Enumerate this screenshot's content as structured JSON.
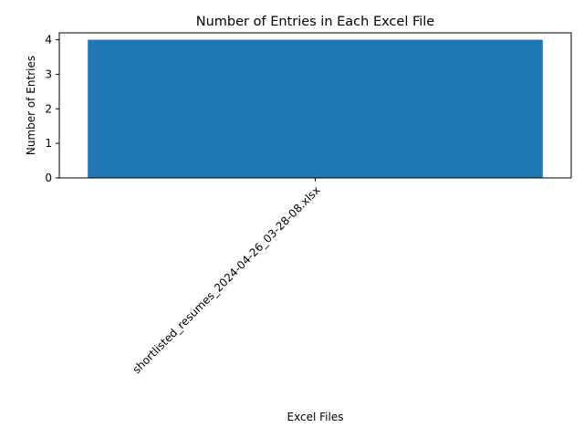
{
  "chart_data": {
    "type": "bar",
    "title": "Number of Entries in Each Excel File",
    "xlabel": "Excel Files",
    "ylabel": "Number of Entries",
    "categories": [
      "shortlisted_resumes_2024-04-26_03-28-08.xlsx"
    ],
    "values": [
      4
    ],
    "ylim": [
      0,
      4.2
    ],
    "yticks": [
      0,
      1,
      2,
      3,
      4
    ],
    "grid": false,
    "legend": "none",
    "bar_color": "#1f77b4"
  }
}
